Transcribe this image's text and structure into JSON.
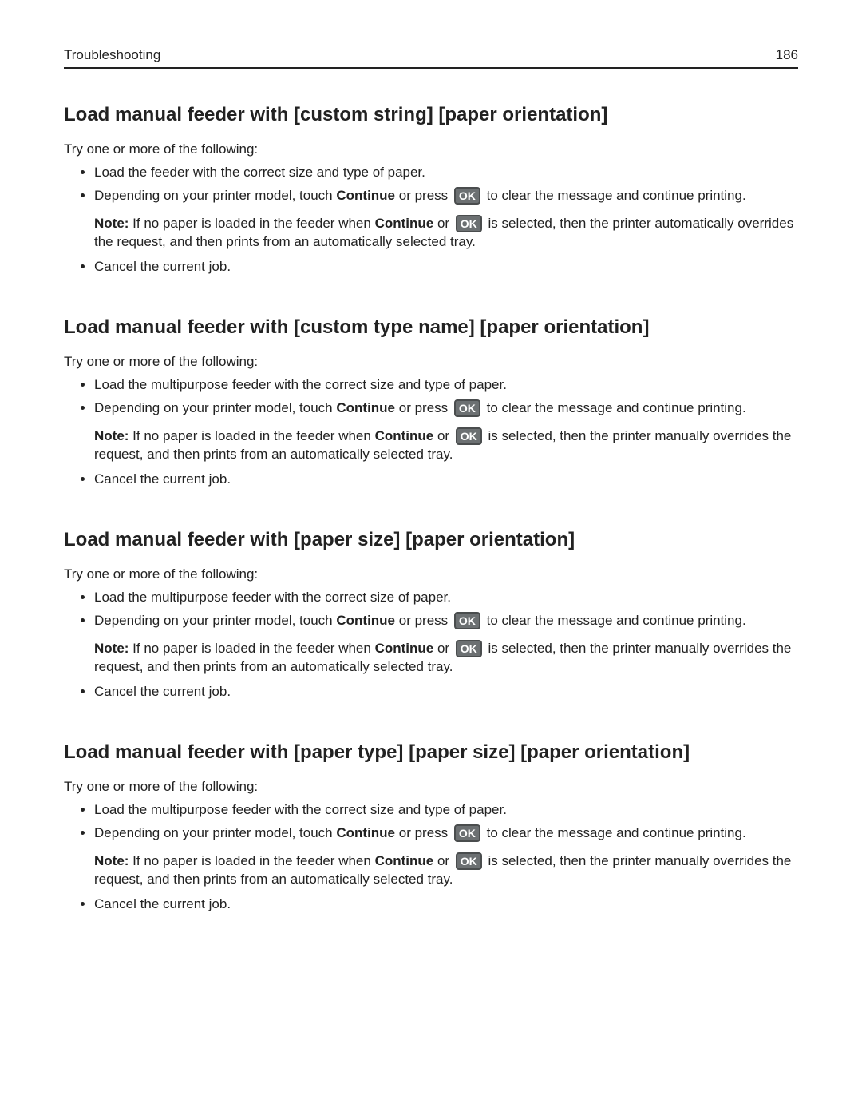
{
  "header": {
    "title": "Troubleshooting",
    "page": "186"
  },
  "ok_label": "OK",
  "sections": [
    {
      "title": "Load manual feeder with [custom string] [paper orientation]",
      "intro": "Try one or more of the following:",
      "bullet1": "Load the feeder with the correct size and type of paper.",
      "b2_pre": "Depending on your printer model, touch ",
      "b2_cont": "Continue",
      "b2_mid": " or press ",
      "b2_post": " to clear the message and continue printing.",
      "note_label": "Note:",
      "note_pre": " If no paper is loaded in the feeder when ",
      "note_cont": "Continue",
      "note_mid": " or ",
      "note_post": " is selected, then the printer automatically overrides the request, and then prints from an automatically selected tray.",
      "bullet3": "Cancel the current job."
    },
    {
      "title": "Load manual feeder with [custom type name] [paper orientation]",
      "intro": "Try one or more of the following:",
      "bullet1": "Load the multipurpose feeder with the correct size and type of paper.",
      "b2_pre": "Depending on your printer model, touch ",
      "b2_cont": "Continue",
      "b2_mid": " or press ",
      "b2_post": " to clear the message and continue printing.",
      "note_label": "Note:",
      "note_pre": " If no paper is loaded in the feeder when ",
      "note_cont": "Continue",
      "note_mid": " or ",
      "note_post": " is selected, then the printer manually overrides the request, and then prints from an automatically selected tray.",
      "bullet3": "Cancel the current job."
    },
    {
      "title": "Load manual feeder with [paper size] [paper orientation]",
      "intro": "Try one or more of the following:",
      "bullet1": "Load the multipurpose feeder with the correct size of paper.",
      "b2_pre": "Depending on your printer model, touch ",
      "b2_cont": "Continue",
      "b2_mid": " or press ",
      "b2_post": " to clear the message and continue printing.",
      "note_label": "Note:",
      "note_pre": " If no paper is loaded in the feeder when ",
      "note_cont": "Continue",
      "note_mid": " or ",
      "note_post": " is selected, then the printer manually overrides the request, and then prints from an automatically selected tray.",
      "bullet3": "Cancel the current job."
    },
    {
      "title": "Load manual feeder with [paper type] [paper size] [paper orientation]",
      "intro": "Try one or more of the following:",
      "bullet1": "Load the multipurpose feeder with the correct size and type of paper.",
      "b2_pre": "Depending on your printer model, touch ",
      "b2_cont": "Continue",
      "b2_mid": " or press ",
      "b2_post": " to clear the message and continue printing.",
      "note_label": "Note:",
      "note_pre": " If no paper is loaded in the feeder when ",
      "note_cont": "Continue",
      "note_mid": " or ",
      "note_post": " is selected, then the printer manually overrides the request, and then prints from an automatically selected tray.",
      "bullet3": "Cancel the current job."
    }
  ]
}
